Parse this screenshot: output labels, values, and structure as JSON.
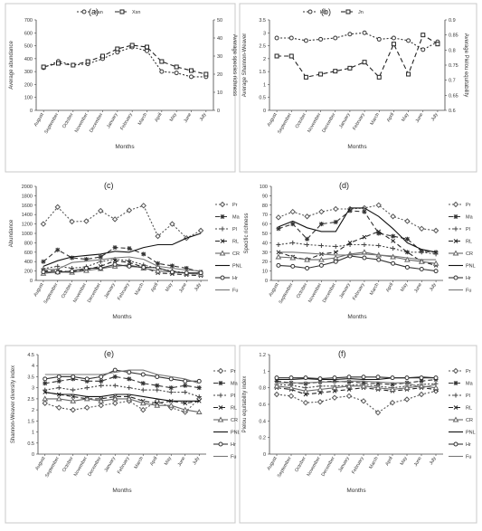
{
  "months": [
    "August",
    "September",
    "October",
    "November",
    "December",
    "January",
    "February",
    "March",
    "April",
    "May",
    "June",
    "July"
  ],
  "xlabel": "Months",
  "chart_data": [
    {
      "panel": "(a)",
      "type": "line",
      "ylabel": "Average abundance",
      "ylim": [
        0,
        700
      ],
      "yticks": [
        "0",
        "100",
        "200",
        "300",
        "400",
        "500",
        "600",
        "700"
      ],
      "y2label": "Average species richness",
      "y2lim": [
        0,
        50
      ],
      "y2ticks": [
        "0",
        "10",
        "20",
        "30",
        "40",
        "50"
      ],
      "legend": "top-center",
      "series": [
        {
          "name": "Xan",
          "axis": "left",
          "color": "#333333",
          "dash": "2,2",
          "marker": "circle",
          "values": [
            330,
            380,
            350,
            360,
            400,
            450,
            490,
            460,
            300,
            290,
            260,
            260
          ]
        },
        {
          "name": "Xsn",
          "axis": "right",
          "color": "#222222",
          "dash": "5,3",
          "marker": "square",
          "values": [
            24,
            26,
            25,
            27,
            30,
            34,
            36,
            35,
            27,
            24,
            22,
            20
          ]
        }
      ]
    },
    {
      "panel": "(b)",
      "type": "line",
      "ylabel": "Average Shannon-Weaver",
      "ylim": [
        0,
        3.5
      ],
      "yticks": [
        "0",
        "0.5",
        "1",
        "1.5",
        "2",
        "2.5",
        "3",
        "3.5"
      ],
      "y2label": "Average Pielou equitability",
      "y2lim": [
        0.6,
        0.9
      ],
      "y2ticks": [
        "0.6",
        "0.65",
        "0.7",
        "0.75",
        "0.8",
        "0.85",
        "0.9"
      ],
      "legend": "top-center",
      "series": [
        {
          "name": "Hn",
          "axis": "left",
          "color": "#333333",
          "dash": "2,2",
          "marker": "circle",
          "values": [
            2.8,
            2.8,
            2.7,
            2.75,
            2.8,
            2.95,
            3.0,
            2.75,
            2.8,
            2.7,
            2.35,
            2.65
          ]
        },
        {
          "name": "Jn",
          "axis": "right",
          "color": "#222222",
          "dash": "5,3",
          "marker": "square",
          "values": [
            0.78,
            0.78,
            0.71,
            0.72,
            0.73,
            0.74,
            0.76,
            0.71,
            0.82,
            0.72,
            0.85,
            0.82
          ]
        }
      ]
    },
    {
      "panel": "(c)",
      "type": "line",
      "ylabel": "Abundance",
      "ylim": [
        0,
        2000
      ],
      "yticks": [
        "0",
        "200",
        "400",
        "600",
        "800",
        "1000",
        "1200",
        "1400",
        "1600",
        "1800",
        "2000"
      ],
      "legend": "right",
      "series": [
        {
          "name": "Pr",
          "color": "#555555",
          "dash": "2,2",
          "marker": "diamond",
          "values": [
            1200,
            1560,
            1250,
            1260,
            1480,
            1300,
            1490,
            1590,
            940,
            1200,
            900,
            1060
          ]
        },
        {
          "name": "Ma",
          "color": "#333333",
          "dash": "5,3",
          "marker": "star",
          "values": [
            400,
            650,
            480,
            450,
            500,
            700,
            680,
            560,
            360,
            310,
            260,
            180
          ]
        },
        {
          "name": "Pl",
          "color": "#444444",
          "dash": "2,2",
          "marker": "plus",
          "values": [
            250,
            300,
            260,
            290,
            400,
            450,
            420,
            330,
            250,
            200,
            160,
            140
          ]
        },
        {
          "name": "RL",
          "color": "#222222",
          "dash": "5,3",
          "marker": "cross",
          "values": [
            200,
            210,
            180,
            230,
            300,
            420,
            380,
            280,
            160,
            140,
            120,
            100
          ]
        },
        {
          "name": "CR",
          "color": "#666666",
          "dash": "",
          "marker": "triangle",
          "values": [
            150,
            180,
            170,
            210,
            250,
            300,
            330,
            260,
            200,
            180,
            150,
            130
          ]
        },
        {
          "name": "PNL",
          "color": "#111111",
          "dash": "",
          "marker": "none",
          "values": [
            300,
            420,
            500,
            530,
            560,
            620,
            600,
            700,
            760,
            760,
            900,
            1000
          ]
        },
        {
          "name": "Hr",
          "color": "#333333",
          "dash": "",
          "marker": "circle",
          "values": [
            180,
            170,
            200,
            260,
            260,
            340,
            300,
            280,
            270,
            180,
            160,
            160
          ]
        },
        {
          "name": "Fu",
          "color": "#777777",
          "dash": "",
          "marker": "none",
          "values": [
            230,
            240,
            380,
            410,
            440,
            480,
            500,
            450,
            300,
            260,
            220,
            200
          ]
        }
      ]
    },
    {
      "panel": "(d)",
      "type": "line",
      "ylabel": "Specific richness",
      "ylim": [
        0,
        100
      ],
      "yticks": [
        "0",
        "10",
        "20",
        "30",
        "40",
        "50",
        "60",
        "70",
        "80",
        "90",
        "100"
      ],
      "legend": "right",
      "series": [
        {
          "name": "Pr",
          "color": "#555555",
          "dash": "2,2",
          "marker": "diamond",
          "values": [
            67,
            73,
            68,
            73,
            76,
            76,
            77,
            80,
            68,
            63,
            55,
            53
          ]
        },
        {
          "name": "Ma",
          "color": "#333333",
          "dash": "5,3",
          "marker": "star",
          "values": [
            55,
            60,
            44,
            60,
            62,
            74,
            73,
            50,
            47,
            44,
            31,
            30
          ]
        },
        {
          "name": "Pl",
          "color": "#444444",
          "dash": "2,2",
          "marker": "plus",
          "values": [
            38,
            40,
            38,
            37,
            36,
            38,
            38,
            37,
            34,
            30,
            30,
            28
          ]
        },
        {
          "name": "RL",
          "color": "#222222",
          "dash": "5,3",
          "marker": "cross",
          "values": [
            30,
            25,
            22,
            28,
            30,
            40,
            46,
            52,
            42,
            30,
            20,
            16
          ]
        },
        {
          "name": "CR",
          "color": "#666666",
          "dash": "",
          "marker": "triangle",
          "values": [
            25,
            24,
            22,
            22,
            24,
            28,
            30,
            27,
            25,
            22,
            20,
            18
          ]
        },
        {
          "name": "PNL",
          "color": "#111111",
          "dash": "",
          "marker": "none",
          "values": [
            57,
            63,
            56,
            52,
            52,
            77,
            77,
            68,
            55,
            40,
            33,
            30
          ]
        },
        {
          "name": "Hr",
          "color": "#333333",
          "dash": "",
          "marker": "circle",
          "values": [
            16,
            15,
            13,
            16,
            20,
            26,
            24,
            22,
            18,
            14,
            12,
            10
          ]
        },
        {
          "name": "Fu",
          "color": "#777777",
          "dash": "",
          "marker": "none",
          "values": [
            30,
            30,
            29,
            28,
            27,
            27,
            28,
            27,
            26,
            24,
            22,
            22
          ]
        }
      ]
    },
    {
      "panel": "(e)",
      "type": "line",
      "ylabel": "Shannon-Weaver diversity index",
      "ylim": [
        0,
        4.5
      ],
      "yticks": [
        "0",
        "0.5",
        "1",
        "1.5",
        "2",
        "2.5",
        "3",
        "3.5",
        "4",
        "4.5"
      ],
      "legend": "right",
      "series": [
        {
          "name": "Pr",
          "color": "#555555",
          "dash": "2,2",
          "marker": "diamond",
          "values": [
            2.3,
            2.1,
            2.0,
            2.1,
            2.2,
            2.3,
            2.4,
            2.0,
            2.4,
            2.1,
            1.9,
            2.5
          ]
        },
        {
          "name": "Ma",
          "color": "#333333",
          "dash": "5,3",
          "marker": "star",
          "values": [
            3.2,
            3.3,
            3.4,
            3.3,
            3.3,
            3.5,
            3.4,
            3.2,
            3.1,
            3.0,
            3.1,
            3.0
          ]
        },
        {
          "name": "Pl",
          "color": "#444444",
          "dash": "2,2",
          "marker": "plus",
          "values": [
            2.9,
            3.0,
            2.9,
            3.0,
            3.1,
            3.1,
            3.0,
            2.9,
            2.9,
            2.8,
            2.8,
            2.6
          ]
        },
        {
          "name": "RL",
          "color": "#222222",
          "dash": "5,3",
          "marker": "cross",
          "values": [
            2.8,
            2.7,
            2.6,
            2.5,
            2.5,
            2.6,
            2.6,
            2.4,
            2.3,
            2.4,
            2.3,
            2.4
          ]
        },
        {
          "name": "CR",
          "color": "#666666",
          "dash": "",
          "marker": "triangle",
          "values": [
            2.5,
            2.5,
            2.4,
            2.5,
            2.4,
            2.5,
            2.5,
            2.3,
            2.2,
            2.2,
            2.0,
            1.9
          ]
        },
        {
          "name": "PNL",
          "color": "#111111",
          "dash": "",
          "marker": "none",
          "values": [
            2.8,
            2.7,
            2.7,
            2.6,
            2.6,
            2.7,
            2.7,
            2.6,
            2.5,
            2.4,
            2.4,
            2.4
          ]
        },
        {
          "name": "Hr",
          "color": "#333333",
          "dash": "",
          "marker": "circle",
          "values": [
            3.4,
            3.5,
            3.5,
            3.4,
            3.5,
            3.8,
            3.7,
            3.6,
            3.5,
            3.4,
            3.3,
            3.3
          ]
        },
        {
          "name": "Fu",
          "color": "#777777",
          "dash": "",
          "marker": "none",
          "values": [
            3.6,
            3.6,
            3.6,
            3.6,
            3.6,
            3.7,
            3.8,
            3.8,
            3.6,
            3.5,
            3.4,
            3.2
          ]
        }
      ]
    },
    {
      "panel": "(f)",
      "type": "line",
      "ylabel": "Pielou equitability index",
      "ylim": [
        0,
        1.2
      ],
      "yticks": [
        "0",
        "0.2",
        "0.4",
        "0.6",
        "0.8",
        "1",
        "1.2"
      ],
      "legend": "right",
      "series": [
        {
          "name": "Pr",
          "color": "#555555",
          "dash": "2,2",
          "marker": "diamond",
          "values": [
            0.72,
            0.7,
            0.62,
            0.63,
            0.68,
            0.7,
            0.64,
            0.5,
            0.62,
            0.66,
            0.72,
            0.76
          ]
        },
        {
          "name": "Ma",
          "color": "#333333",
          "dash": "5,3",
          "marker": "star",
          "values": [
            0.88,
            0.86,
            0.85,
            0.87,
            0.88,
            0.87,
            0.86,
            0.85,
            0.84,
            0.86,
            0.88,
            0.9
          ]
        },
        {
          "name": "Pl",
          "color": "#444444",
          "dash": "2,2",
          "marker": "plus",
          "values": [
            0.84,
            0.83,
            0.8,
            0.82,
            0.82,
            0.83,
            0.84,
            0.82,
            0.8,
            0.82,
            0.84,
            0.85
          ]
        },
        {
          "name": "RL",
          "color": "#222222",
          "dash": "5,3",
          "marker": "cross",
          "values": [
            0.8,
            0.78,
            0.72,
            0.74,
            0.76,
            0.78,
            0.8,
            0.78,
            0.76,
            0.78,
            0.8,
            0.78
          ]
        },
        {
          "name": "CR",
          "color": "#666666",
          "dash": "",
          "marker": "triangle",
          "values": [
            0.82,
            0.8,
            0.76,
            0.78,
            0.8,
            0.82,
            0.82,
            0.8,
            0.78,
            0.8,
            0.82,
            0.8
          ]
        },
        {
          "name": "PNL",
          "color": "#111111",
          "dash": "",
          "marker": "none",
          "values": [
            0.9,
            0.9,
            0.91,
            0.9,
            0.9,
            0.91,
            0.9,
            0.9,
            0.92,
            0.92,
            0.93,
            0.92
          ]
        },
        {
          "name": "Hr",
          "color": "#333333",
          "dash": "",
          "marker": "circle",
          "values": [
            0.92,
            0.92,
            0.92,
            0.91,
            0.92,
            0.93,
            0.93,
            0.93,
            0.92,
            0.92,
            0.92,
            0.92
          ]
        },
        {
          "name": "Fu",
          "color": "#777777",
          "dash": "",
          "marker": "none",
          "values": [
            0.86,
            0.86,
            0.86,
            0.87,
            0.87,
            0.88,
            0.88,
            0.87,
            0.86,
            0.86,
            0.8,
            0.84
          ]
        }
      ]
    }
  ]
}
